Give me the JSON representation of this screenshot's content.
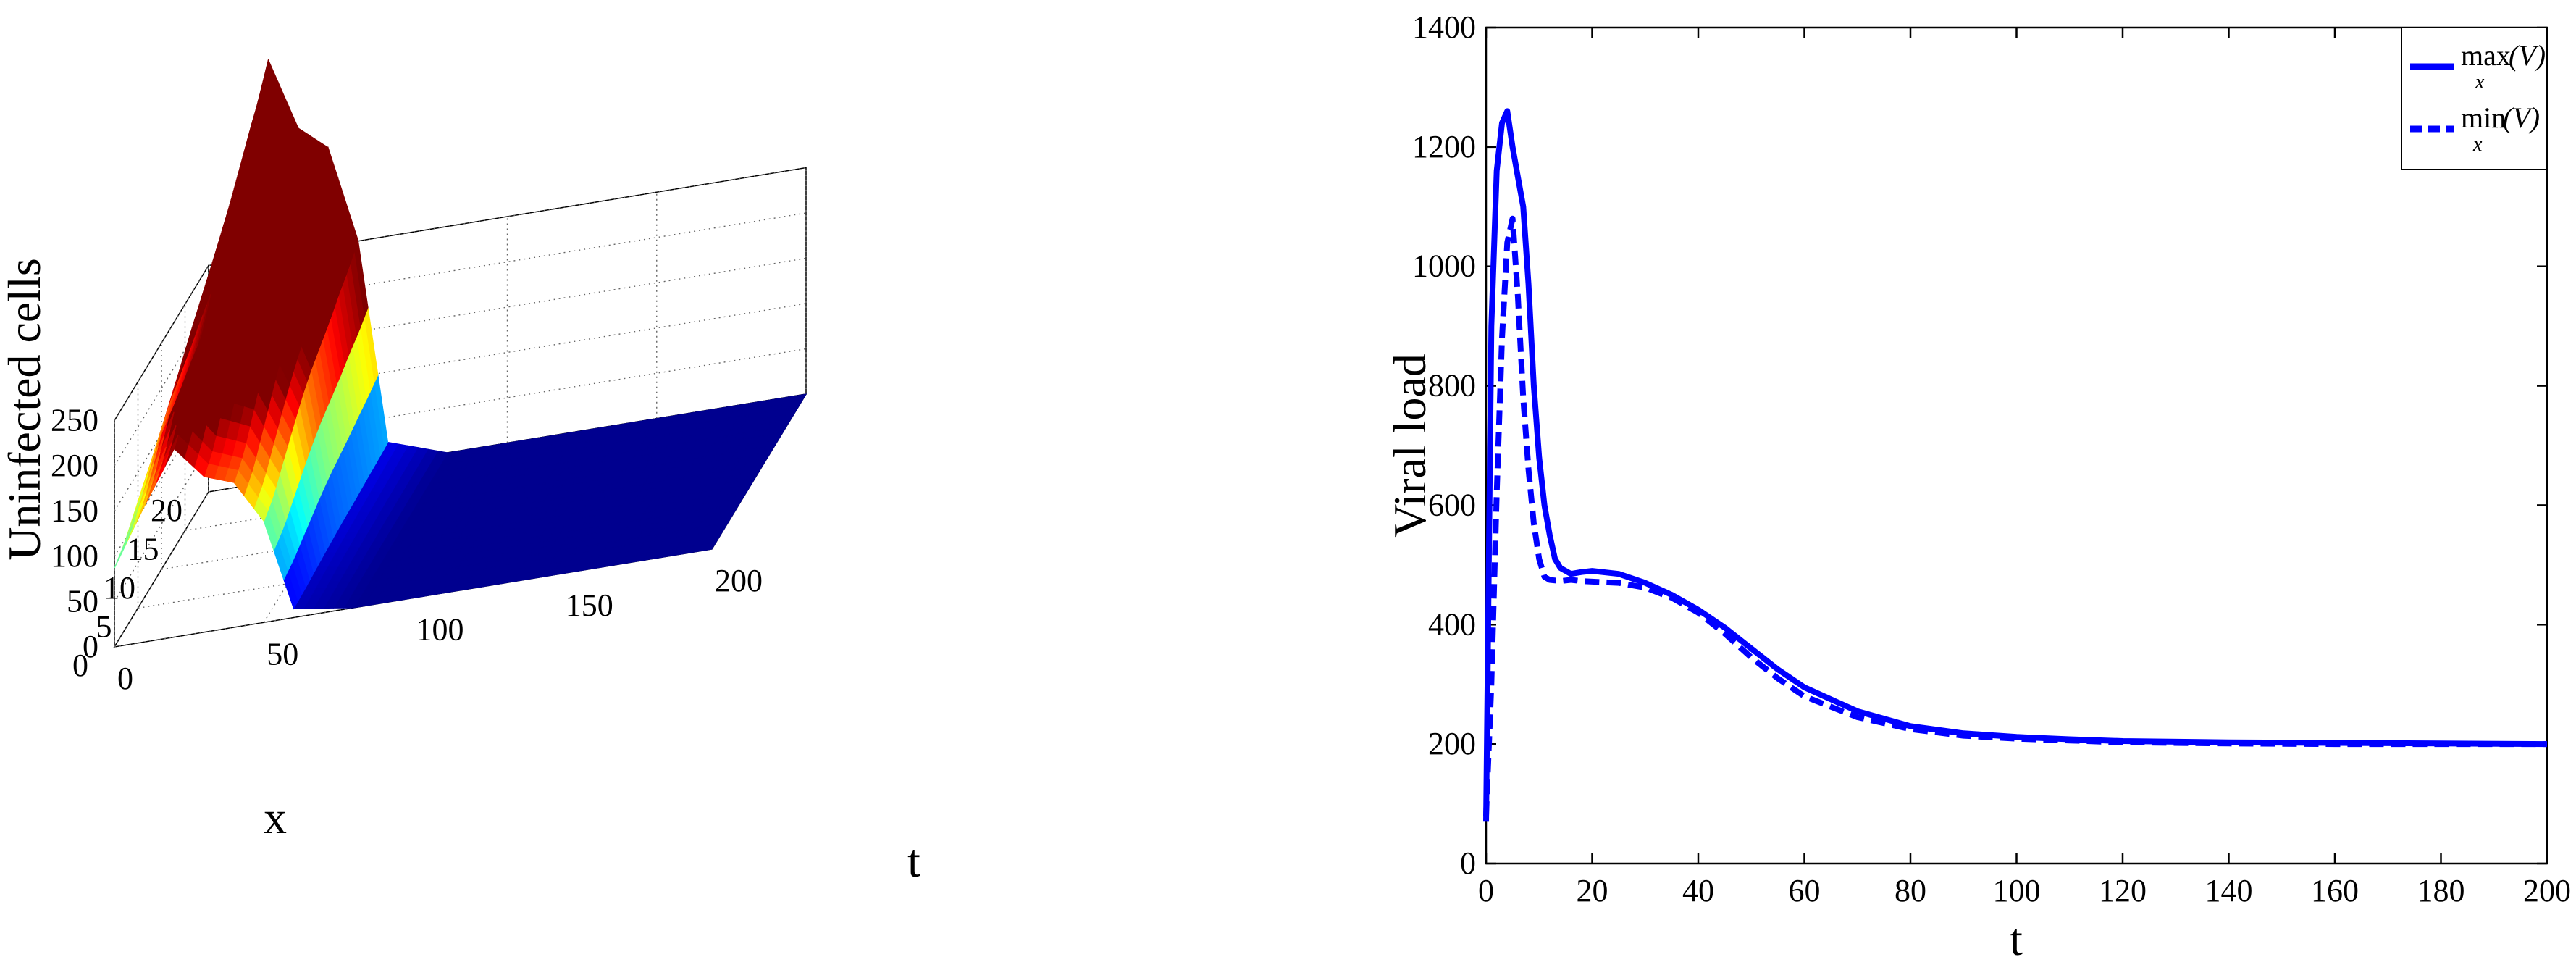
{
  "chart_data": [
    {
      "type": "surface3d",
      "zlabel": "Uninfected cells",
      "xlabel": "x",
      "ylabel": "t",
      "z_ticks": [
        "0",
        "50",
        "100",
        "150",
        "200",
        "250"
      ],
      "x_ticks": [
        "0",
        "5",
        "10",
        "15",
        "20"
      ],
      "t_ticks": [
        "0",
        "50",
        "100",
        "150",
        "200"
      ],
      "zlim": [
        0,
        250
      ],
      "xlim": [
        0,
        20
      ],
      "tlim": [
        0,
        200
      ],
      "colormap": "jet",
      "edge_t0_profile": {
        "x": [
          0,
          2,
          4,
          6,
          8,
          10,
          12,
          14,
          16,
          18,
          20
        ],
        "z": [
          87,
          95,
          110,
          125,
          139,
          150,
          158,
          166,
          176,
          184,
          195
        ]
      },
      "x_equals_0_profile": {
        "t": [
          0,
          10,
          20,
          30,
          40,
          50,
          60,
          80,
          100,
          120,
          150,
          200
        ],
        "z": [
          87,
          150,
          208,
          172,
          160,
          112,
          10,
          0,
          0,
          0,
          0,
          0
        ]
      },
      "grid": true
    },
    {
      "type": "line",
      "xlabel": "t",
      "ylabel": "Viral load",
      "xlim": [
        0,
        200
      ],
      "ylim": [
        0,
        1400
      ],
      "x_ticks": [
        "0",
        "20",
        "40",
        "60",
        "80",
        "100",
        "120",
        "140",
        "160",
        "180",
        "200"
      ],
      "y_ticks": [
        "0",
        "200",
        "400",
        "600",
        "800",
        "1000",
        "1200",
        "1400"
      ],
      "legend_position": "top-right",
      "legend": [
        {
          "op": "max",
          "sub": "x",
          "arg": "(V)",
          "style": "solid"
        },
        {
          "op": "min",
          "sub": "x",
          "arg": "(V)",
          "style": "dashed"
        }
      ],
      "series": [
        {
          "color": "#0000ff",
          "style": "solid",
          "x": [
            0,
            1,
            2,
            3,
            4,
            5,
            6,
            7,
            8,
            9,
            10,
            11,
            12,
            13,
            14,
            16,
            18,
            20,
            25,
            30,
            35,
            40,
            45,
            50,
            55,
            60,
            70,
            80,
            90,
            100,
            110,
            120,
            140,
            160,
            180,
            200
          ],
          "y": [
            70,
            900,
            1160,
            1240,
            1260,
            1200,
            1150,
            1100,
            970,
            800,
            680,
            600,
            550,
            510,
            495,
            485,
            488,
            490,
            485,
            470,
            450,
            425,
            395,
            360,
            325,
            295,
            255,
            230,
            218,
            212,
            208,
            205,
            203,
            202,
            201,
            200
          ]
        },
        {
          "color": "#0000ff",
          "style": "dashed",
          "x": [
            0,
            1,
            2,
            3,
            4,
            5,
            6,
            7,
            8,
            9,
            10,
            11,
            12,
            14,
            16,
            18,
            20,
            25,
            30,
            35,
            40,
            45,
            50,
            55,
            60,
            70,
            80,
            90,
            100,
            110,
            120,
            140,
            160,
            180,
            200
          ],
          "y": [
            80,
            300,
            620,
            880,
            1040,
            1080,
            950,
            780,
            660,
            570,
            510,
            480,
            475,
            473,
            475,
            473,
            472,
            470,
            462,
            445,
            420,
            385,
            345,
            310,
            280,
            245,
            225,
            214,
            209,
            206,
            203,
            201,
            200,
            200,
            200
          ]
        }
      ],
      "grid": false
    }
  ]
}
